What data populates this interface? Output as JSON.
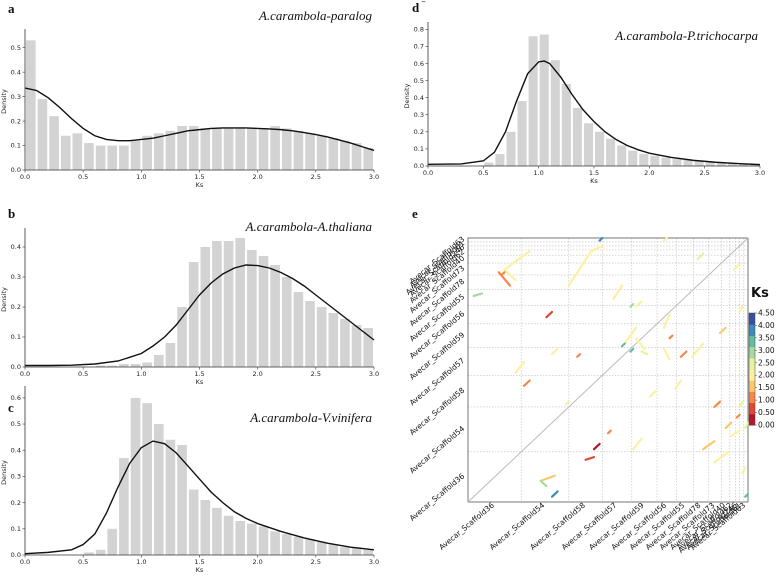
{
  "figure": {
    "colors": {
      "bar": "#d3d3d3",
      "curve": "#111111",
      "axis": "#333333",
      "grid": "#bdbdbd",
      "diag": "#bbbbbb"
    },
    "density_panels": [
      {
        "id": "a",
        "title": "A.carambola-paralog",
        "xlabel": "Ks",
        "ylabel": "Density",
        "xlim": [
          0,
          3
        ],
        "ylim": [
          0,
          0.56
        ],
        "bin_width": 0.1,
        "xticks": [
          "0.0",
          "0.5",
          "1.0",
          "1.5",
          "2.0",
          "2.5",
          "3.0"
        ],
        "yticks": [
          "0.0",
          "0.1",
          "0.2",
          "0.3",
          "0.4",
          "0.5"
        ],
        "bins": [
          0.0,
          0.1,
          0.2,
          0.3,
          0.4,
          0.5,
          0.6,
          0.7,
          0.8,
          0.9,
          1.0,
          1.1,
          1.2,
          1.3,
          1.4,
          1.5,
          1.6,
          1.7,
          1.8,
          1.9,
          2.0,
          2.1,
          2.2,
          2.3,
          2.4,
          2.5,
          2.6,
          2.7,
          2.8,
          2.9
        ],
        "values": [
          0.53,
          0.29,
          0.22,
          0.14,
          0.15,
          0.11,
          0.1,
          0.1,
          0.1,
          0.12,
          0.14,
          0.15,
          0.16,
          0.18,
          0.18,
          0.17,
          0.17,
          0.17,
          0.17,
          0.17,
          0.17,
          0.18,
          0.17,
          0.16,
          0.15,
          0.14,
          0.13,
          0.12,
          0.11,
          0.09
        ],
        "curve_x": [
          0.0,
          0.1,
          0.2,
          0.3,
          0.4,
          0.5,
          0.6,
          0.7,
          0.8,
          0.9,
          1.0,
          1.1,
          1.2,
          1.3,
          1.4,
          1.5,
          1.6,
          1.7,
          1.8,
          1.9,
          2.0,
          2.1,
          2.2,
          2.3,
          2.4,
          2.5,
          2.6,
          2.7,
          2.8,
          2.9,
          3.0
        ],
        "curve_y": [
          0.335,
          0.325,
          0.295,
          0.255,
          0.21,
          0.17,
          0.14,
          0.125,
          0.12,
          0.12,
          0.125,
          0.13,
          0.14,
          0.15,
          0.16,
          0.165,
          0.17,
          0.172,
          0.172,
          0.172,
          0.17,
          0.168,
          0.165,
          0.16,
          0.153,
          0.145,
          0.135,
          0.123,
          0.11,
          0.095,
          0.08
        ]
      },
      {
        "id": "b",
        "title": "A.carambola-A.thaliana",
        "xlabel": "Ks",
        "ylabel": "Density",
        "xlim": [
          0,
          3
        ],
        "ylim": [
          0,
          0.45
        ],
        "bin_width": 0.1,
        "xticks": [
          "0.0",
          "0.5",
          "1.0",
          "1.5",
          "2.0",
          "2.5",
          "3.0"
        ],
        "yticks": [
          "0.0",
          "0.1",
          "0.2",
          "0.3",
          "0.4"
        ],
        "bins": [
          0.0,
          0.1,
          0.2,
          0.3,
          0.4,
          0.5,
          0.6,
          0.7,
          0.8,
          0.9,
          1.0,
          1.1,
          1.2,
          1.3,
          1.4,
          1.5,
          1.6,
          1.7,
          1.8,
          1.9,
          2.0,
          2.1,
          2.2,
          2.3,
          2.4,
          2.5,
          2.6,
          2.7,
          2.8,
          2.9
        ],
        "values": [
          0.0,
          0.0,
          0.0,
          0.0,
          0.0,
          0.0,
          0.005,
          0.005,
          0.01,
          0.01,
          0.015,
          0.04,
          0.08,
          0.2,
          0.35,
          0.4,
          0.42,
          0.42,
          0.43,
          0.39,
          0.37,
          0.34,
          0.3,
          0.25,
          0.22,
          0.2,
          0.18,
          0.16,
          0.14,
          0.13
        ],
        "curve_x": [
          0.0,
          0.2,
          0.4,
          0.6,
          0.8,
          1.0,
          1.1,
          1.2,
          1.3,
          1.4,
          1.5,
          1.6,
          1.7,
          1.8,
          1.9,
          2.0,
          2.1,
          2.2,
          2.3,
          2.4,
          2.5,
          2.6,
          2.7,
          2.8,
          2.9,
          3.0
        ],
        "curve_y": [
          0.005,
          0.005,
          0.006,
          0.01,
          0.02,
          0.045,
          0.07,
          0.1,
          0.14,
          0.19,
          0.24,
          0.28,
          0.31,
          0.33,
          0.34,
          0.338,
          0.33,
          0.315,
          0.295,
          0.27,
          0.24,
          0.21,
          0.18,
          0.15,
          0.12,
          0.09
        ]
      },
      {
        "id": "c",
        "title": "A.carambola-V.vinifera",
        "xlabel": "Ks",
        "ylabel": "Density",
        "xlim": [
          0,
          3
        ],
        "ylim": [
          0,
          0.63
        ],
        "bin_width": 0.1,
        "xticks": [
          "0.0",
          "0.5",
          "1.0",
          "1.5",
          "2.0",
          "2.5",
          "3.0"
        ],
        "yticks": [
          "0.0",
          "0.1",
          "0.2",
          "0.3",
          "0.4",
          "0.5",
          "0.6"
        ],
        "bins": [
          0.0,
          0.1,
          0.2,
          0.3,
          0.4,
          0.5,
          0.6,
          0.7,
          0.8,
          0.9,
          1.0,
          1.1,
          1.2,
          1.3,
          1.4,
          1.5,
          1.6,
          1.7,
          1.8,
          1.9,
          2.0,
          2.1,
          2.2,
          2.3,
          2.4,
          2.5,
          2.6,
          2.7,
          2.8,
          2.9
        ],
        "values": [
          0.0,
          0.0,
          0.0,
          0.0,
          0.0,
          0.01,
          0.02,
          0.1,
          0.37,
          0.6,
          0.58,
          0.5,
          0.44,
          0.42,
          0.25,
          0.21,
          0.18,
          0.15,
          0.13,
          0.12,
          0.11,
          0.09,
          0.08,
          0.07,
          0.06,
          0.05,
          0.04,
          0.03,
          0.03,
          0.02
        ],
        "curve_x": [
          0.0,
          0.2,
          0.4,
          0.5,
          0.6,
          0.7,
          0.8,
          0.9,
          1.0,
          1.1,
          1.2,
          1.3,
          1.4,
          1.5,
          1.6,
          1.7,
          1.8,
          1.9,
          2.0,
          2.2,
          2.4,
          2.6,
          2.8,
          3.0
        ],
        "curve_y": [
          0.005,
          0.01,
          0.02,
          0.04,
          0.08,
          0.16,
          0.26,
          0.35,
          0.41,
          0.435,
          0.425,
          0.39,
          0.34,
          0.29,
          0.24,
          0.2,
          0.165,
          0.14,
          0.12,
          0.09,
          0.065,
          0.045,
          0.03,
          0.02
        ]
      },
      {
        "id": "d",
        "title": "A.carambola-P.trichocarpa",
        "xlabel": "Ks",
        "ylabel": "Density",
        "xlim": [
          0,
          3
        ],
        "ylim": [
          0,
          0.82
        ],
        "bin_width": 0.1,
        "xticks": [
          "0.0",
          "0.5",
          "1.0",
          "1.5",
          "2.0",
          "2.5",
          "3.0"
        ],
        "yticks": [
          "0.0",
          "0.1",
          "0.2",
          "0.3",
          "0.4",
          "0.5",
          "0.6",
          "0.7",
          "0.8"
        ],
        "bins": [
          0.0,
          0.1,
          0.2,
          0.3,
          0.4,
          0.5,
          0.6,
          0.7,
          0.8,
          0.9,
          1.0,
          1.1,
          1.2,
          1.3,
          1.4,
          1.5,
          1.6,
          1.7,
          1.8,
          1.9,
          2.0,
          2.1,
          2.2,
          2.3,
          2.4,
          2.5,
          2.6,
          2.7,
          2.8,
          2.9
        ],
        "values": [
          0.0,
          0.0,
          0.0,
          0.0,
          0.0,
          0.02,
          0.07,
          0.2,
          0.38,
          0.76,
          0.77,
          0.62,
          0.48,
          0.34,
          0.25,
          0.2,
          0.16,
          0.12,
          0.09,
          0.07,
          0.06,
          0.05,
          0.04,
          0.035,
          0.03,
          0.025,
          0.02,
          0.015,
          0.012,
          0.01
        ],
        "curve_x": [
          0.0,
          0.3,
          0.5,
          0.6,
          0.7,
          0.8,
          0.9,
          1.0,
          1.05,
          1.1,
          1.2,
          1.3,
          1.4,
          1.5,
          1.6,
          1.7,
          1.8,
          1.9,
          2.0,
          2.2,
          2.4,
          2.6,
          2.8,
          3.0
        ],
        "curve_y": [
          0.01,
          0.012,
          0.03,
          0.08,
          0.2,
          0.38,
          0.54,
          0.61,
          0.615,
          0.6,
          0.52,
          0.42,
          0.33,
          0.26,
          0.2,
          0.155,
          0.12,
          0.095,
          0.075,
          0.05,
          0.033,
          0.022,
          0.014,
          0.008
        ]
      }
    ],
    "dotplot": {
      "id": "e",
      "colorbar_title": "Ks",
      "colorbar_ticks": [
        "0.00",
        "0.50",
        "1.00",
        "1.50",
        "2.00",
        "2.50",
        "3.00",
        "3.50",
        "4.00",
        "4.50"
      ],
      "colorbar_range": [
        0,
        4.5
      ],
      "colorbar_colors": [
        "#b4152a",
        "#e04832",
        "#f7884c",
        "#fcc869",
        "#fbf1a0",
        "#e6f49b",
        "#a7d9a2",
        "#63bca4",
        "#3a8cbc",
        "#3a4fa0"
      ],
      "x_labels": [
        "Avecar_Scaffold36",
        "Avecar_Scaffold54",
        "Avecar_Scaffold58",
        "Avecar_Scaffold57",
        "Avecar_Scaffold59",
        "Avecar_Scaffold56",
        "Avecar_Scaffold55",
        "Avecar_Scaffold78",
        "Avecar_Scaffold73",
        "Avecar_Scaffold40",
        "Avecar_Scaffold62",
        "Avecar_Scaffold246",
        "Avecar_Scaffold61",
        "Avecar_Scaffold63",
        "Avecar_Scaffold68"
      ],
      "y_labels": [
        "Avecar_Scaffold36",
        "Avecar_Scaffold54",
        "Avecar_Scaffold58",
        "Avecar_Scaffold57",
        "Avecar_Scaffold59",
        "Avecar_Scaffold56",
        "Avecar_Scaffold55",
        "Avecar_Scaffold78",
        "Avecar_Scaffold73",
        "Avecar_Scaffold40",
        "Avecar_Scaffold62",
        "Avecar_Scaffold246",
        "Avecar_Scaffold61",
        "Avecar_Scaffold63",
        "Avecar_Scaffold68"
      ],
      "boundaries": [
        0,
        0.19,
        0.36,
        0.48,
        0.585,
        0.675,
        0.745,
        0.805,
        0.86,
        0.905,
        0.935,
        0.955,
        0.97,
        0.985,
        1.0
      ],
      "segments": [
        [
          0.13,
          0.88,
          0.22,
          0.95,
          2.0
        ],
        [
          0.13,
          0.88,
          0.17,
          0.84,
          1.9
        ],
        [
          0.11,
          0.87,
          0.15,
          0.82,
          1.0
        ],
        [
          0.02,
          0.78,
          0.05,
          0.79,
          3.2
        ],
        [
          0.17,
          0.49,
          0.2,
          0.53,
          2.2
        ],
        [
          0.26,
          0.08,
          0.31,
          0.1,
          1.6
        ],
        [
          0.42,
          0.16,
          0.45,
          0.17,
          0.6
        ],
        [
          0.28,
          0.7,
          0.3,
          0.72,
          0.7
        ],
        [
          0.26,
          0.08,
          0.28,
          0.06,
          3.2
        ],
        [
          0.3,
          0.02,
          0.32,
          0.04,
          3.8
        ],
        [
          0.45,
          0.2,
          0.47,
          0.22,
          0.2
        ],
        [
          0.39,
          0.55,
          0.4,
          0.56,
          1.0
        ],
        [
          0.36,
          0.82,
          0.44,
          0.95,
          2.0
        ],
        [
          0.44,
          0.95,
          0.48,
          0.97,
          1.9
        ],
        [
          0.56,
          0.6,
          0.6,
          0.66,
          2.0
        ],
        [
          0.59,
          0.2,
          0.62,
          0.24,
          2.1
        ],
        [
          0.52,
          0.77,
          0.55,
          0.82,
          2.2
        ],
        [
          0.6,
          0.62,
          0.63,
          0.58,
          1.9
        ],
        [
          0.62,
          0.57,
          0.64,
          0.56,
          2.3
        ],
        [
          0.55,
          0.59,
          0.56,
          0.6,
          3.5
        ],
        [
          0.58,
          0.57,
          0.59,
          0.58,
          3.3
        ],
        [
          0.7,
          0.58,
          0.72,
          0.54,
          2.2
        ],
        [
          0.7,
          0.66,
          0.72,
          0.71,
          2.1
        ],
        [
          0.72,
          0.62,
          0.73,
          0.63,
          1.1
        ],
        [
          0.74,
          0.43,
          0.76,
          0.46,
          1.9
        ],
        [
          0.8,
          0.55,
          0.84,
          0.6,
          2.0
        ],
        [
          0.84,
          0.2,
          0.88,
          0.23,
          1.4
        ],
        [
          0.88,
          0.15,
          0.93,
          0.19,
          1.9
        ],
        [
          0.88,
          0.36,
          0.9,
          0.38,
          1.2
        ],
        [
          0.92,
          0.28,
          0.94,
          0.3,
          1.6
        ],
        [
          0.94,
          0.25,
          0.97,
          0.27,
          2.2
        ],
        [
          0.95,
          0.88,
          0.97,
          0.9,
          2.0
        ],
        [
          0.97,
          0.72,
          0.98,
          0.74,
          2.1
        ],
        [
          0.98,
          0.11,
          0.99,
          0.13,
          1.9
        ],
        [
          0.96,
          0.32,
          0.97,
          0.33,
          1.0
        ],
        [
          0.2,
          0.44,
          0.22,
          0.46,
          1.2
        ],
        [
          0.3,
          0.56,
          0.32,
          0.58,
          2.0
        ],
        [
          0.35,
          0.37,
          0.36,
          0.38,
          1.8
        ],
        [
          0.6,
          0.74,
          0.62,
          0.76,
          2.2
        ],
        [
          0.65,
          0.4,
          0.67,
          0.42,
          1.9
        ],
        [
          0.76,
          0.55,
          0.78,
          0.57,
          1.0
        ],
        [
          0.82,
          0.92,
          0.84,
          0.94,
          2.3
        ],
        [
          0.9,
          0.64,
          0.92,
          0.66,
          1.3
        ],
        [
          0.99,
          0.28,
          1.0,
          0.3,
          2.5
        ],
        [
          0.12,
          0.86,
          0.13,
          0.87,
          0.9
        ],
        [
          0.58,
          0.74,
          0.59,
          0.75,
          3.0
        ],
        [
          0.99,
          0.02,
          1.0,
          0.03,
          3.6
        ],
        [
          0.5,
          0.26,
          0.51,
          0.27,
          0.8
        ],
        [
          0.97,
          0.36,
          0.98,
          0.38,
          2.6
        ],
        [
          0.7,
          0.99,
          0.71,
          1.0,
          2.0
        ],
        [
          0.47,
          0.99,
          0.48,
          1.0,
          3.9
        ]
      ]
    }
  }
}
